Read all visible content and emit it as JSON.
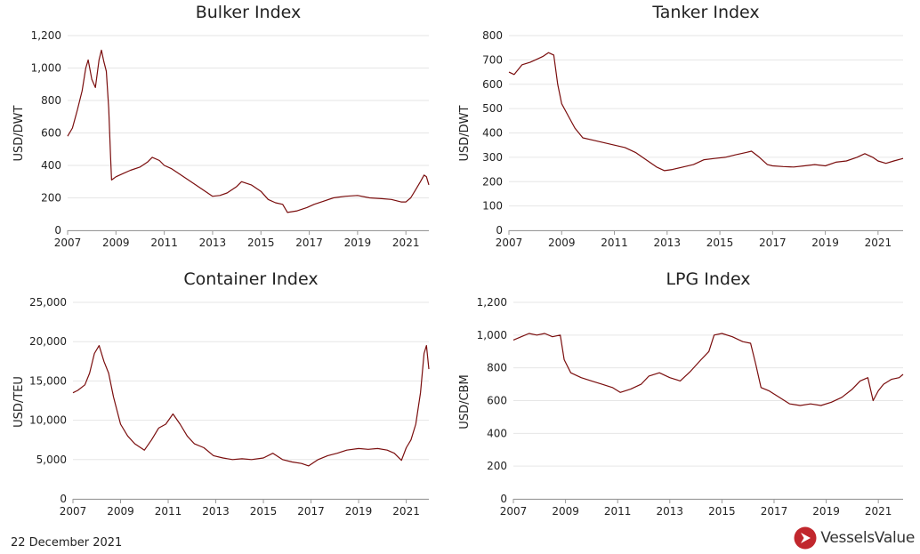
{
  "footer": {
    "date": "22 December 2021",
    "brand_name": "VesselsValue",
    "brand_color": "#c1272d",
    "brand_icon": "vesselsvalue-logo-icon"
  },
  "style": {
    "line_color": "#7a0d0d",
    "grid_color": "#e6e6e6"
  },
  "chart_data": [
    {
      "type": "line",
      "title": "Bulker Index",
      "ylabel": "USD/DWT",
      "xlabel": "",
      "ylim": [
        0,
        1200
      ],
      "yticks": [
        0,
        200,
        400,
        600,
        800,
        1000,
        1200
      ],
      "ytick_labels": [
        "0",
        "200",
        "400",
        "600",
        "800",
        "1,000",
        "1,200"
      ],
      "xlim": [
        2007,
        2021.95
      ],
      "xticks": [
        2007,
        2009,
        2011,
        2013,
        2015,
        2017,
        2019,
        2021
      ],
      "xtick_labels": [
        "2007",
        "2009",
        "2011",
        "2013",
        "2015",
        "2017",
        "2019",
        "2021"
      ],
      "grid": true,
      "series": [
        {
          "x": [
            2007,
            2007.2,
            2007.4,
            2007.6,
            2007.75,
            2007.85,
            2008.0,
            2008.15,
            2008.3,
            2008.4,
            2008.5,
            2008.6,
            2008.7,
            2008.78,
            2008.82,
            2009.0,
            2009.3,
            2009.6,
            2010.0,
            2010.3,
            2010.5,
            2010.8,
            2011.0,
            2011.3,
            2011.6,
            2011.9,
            2012.3,
            2012.7,
            2013.0,
            2013.3,
            2013.6,
            2014.0,
            2014.2,
            2014.6,
            2015.0,
            2015.3,
            2015.6,
            2015.9,
            2016.1,
            2016.5,
            2016.9,
            2017.2,
            2017.6,
            2018.0,
            2018.5,
            2019.0,
            2019.5,
            2020.0,
            2020.4,
            2020.8,
            2021.0,
            2021.2,
            2021.4,
            2021.6,
            2021.75,
            2021.85,
            2021.95
          ],
          "y": [
            580,
            630,
            740,
            860,
            1000,
            1050,
            930,
            880,
            1050,
            1110,
            1040,
            980,
            750,
            450,
            310,
            330,
            350,
            370,
            390,
            420,
            450,
            430,
            400,
            380,
            350,
            320,
            280,
            240,
            210,
            215,
            230,
            270,
            300,
            280,
            240,
            190,
            170,
            160,
            110,
            120,
            140,
            160,
            180,
            200,
            210,
            215,
            200,
            195,
            190,
            175,
            175,
            200,
            250,
            300,
            340,
            330,
            280
          ]
        }
      ]
    },
    {
      "type": "line",
      "title": "Tanker Index",
      "ylabel": "USD/DWT",
      "xlabel": "",
      "ylim": [
        0,
        800
      ],
      "yticks": [
        0,
        100,
        200,
        300,
        400,
        500,
        600,
        700,
        800
      ],
      "ytick_labels": [
        "0",
        "100",
        "200",
        "300",
        "400",
        "500",
        "600",
        "700",
        "800"
      ],
      "xlim": [
        2007,
        2021.95
      ],
      "xticks": [
        2007,
        2009,
        2011,
        2013,
        2015,
        2017,
        2019,
        2021
      ],
      "xtick_labels": [
        "2007",
        "2009",
        "2011",
        "2013",
        "2015",
        "2017",
        "2019",
        "2021"
      ],
      "grid": true,
      "series": [
        {
          "x": [
            2007,
            2007.2,
            2007.5,
            2007.8,
            2008.0,
            2008.3,
            2008.5,
            2008.7,
            2008.85,
            2009.0,
            2009.2,
            2009.5,
            2009.8,
            2010.2,
            2010.6,
            2011.0,
            2011.4,
            2011.8,
            2012.2,
            2012.6,
            2012.9,
            2013.2,
            2013.6,
            2014.0,
            2014.4,
            2014.8,
            2015.2,
            2015.6,
            2016.0,
            2016.2,
            2016.5,
            2016.8,
            2017.0,
            2017.4,
            2017.8,
            2018.2,
            2018.6,
            2019.0,
            2019.4,
            2019.8,
            2020.2,
            2020.5,
            2020.8,
            2021.0,
            2021.3,
            2021.6,
            2021.95
          ],
          "y": [
            650,
            640,
            680,
            690,
            700,
            715,
            730,
            720,
            600,
            520,
            480,
            420,
            380,
            370,
            360,
            350,
            340,
            320,
            290,
            260,
            245,
            250,
            260,
            270,
            290,
            295,
            300,
            310,
            320,
            325,
            300,
            270,
            265,
            262,
            260,
            265,
            270,
            265,
            280,
            285,
            300,
            315,
            300,
            285,
            275,
            285,
            295
          ]
        }
      ]
    },
    {
      "type": "line",
      "title": "Container Index",
      "ylabel": "USD/TEU",
      "xlabel": "",
      "ylim": [
        0,
        25000
      ],
      "yticks": [
        0,
        5000,
        10000,
        15000,
        20000,
        25000
      ],
      "ytick_labels": [
        "0",
        "5,000",
        "10,000",
        "15,000",
        "20,000",
        "25,000"
      ],
      "xlim": [
        2007,
        2021.95
      ],
      "xticks": [
        2007,
        2009,
        2011,
        2013,
        2015,
        2017,
        2019,
        2021
      ],
      "xtick_labels": [
        "2007",
        "2009",
        "2011",
        "2013",
        "2015",
        "2017",
        "2019",
        "2021"
      ],
      "grid": true,
      "series": [
        {
          "x": [
            2007,
            2007.2,
            2007.5,
            2007.7,
            2007.9,
            2008.1,
            2008.3,
            2008.5,
            2008.7,
            2009.0,
            2009.3,
            2009.6,
            2010.0,
            2010.3,
            2010.6,
            2010.9,
            2011.2,
            2011.5,
            2011.8,
            2012.1,
            2012.5,
            2012.9,
            2013.3,
            2013.7,
            2014.1,
            2014.5,
            2015.0,
            2015.4,
            2015.8,
            2016.2,
            2016.6,
            2016.9,
            2017.3,
            2017.7,
            2018.1,
            2018.5,
            2019.0,
            2019.4,
            2019.8,
            2020.2,
            2020.5,
            2020.8,
            2021.0,
            2021.2,
            2021.4,
            2021.6,
            2021.75,
            2021.85,
            2021.95
          ],
          "y": [
            13500,
            13800,
            14500,
            16000,
            18500,
            19500,
            17500,
            16000,
            13000,
            9500,
            8000,
            7000,
            6200,
            7500,
            9000,
            9500,
            10800,
            9500,
            8000,
            7000,
            6500,
            5500,
            5200,
            5000,
            5100,
            5000,
            5200,
            5800,
            5000,
            4700,
            4500,
            4200,
            5000,
            5500,
            5800,
            6200,
            6400,
            6300,
            6400,
            6200,
            5800,
            4900,
            6500,
            7500,
            9500,
            13500,
            18500,
            19500,
            16500
          ]
        }
      ]
    },
    {
      "type": "line",
      "title": "LPG Index",
      "ylabel": "USD/CBM",
      "xlabel": "",
      "ylim": [
        0,
        1200
      ],
      "yticks": [
        0,
        200,
        400,
        600,
        800,
        1000,
        1200
      ],
      "ytick_labels": [
        "0",
        "200",
        "400",
        "600",
        "800",
        "1,000",
        "1,200"
      ],
      "xlim": [
        2007,
        2021.95
      ],
      "xticks": [
        2007,
        2009,
        2011,
        2013,
        2015,
        2017,
        2019,
        2021
      ],
      "xtick_labels": [
        "2007",
        "2009",
        "2011",
        "2013",
        "2015",
        "2017",
        "2019",
        "2021"
      ],
      "grid": true,
      "series": [
        {
          "x": [
            2007,
            2007.3,
            2007.6,
            2007.9,
            2008.2,
            2008.5,
            2008.8,
            2008.95,
            2009.2,
            2009.6,
            2010.0,
            2010.4,
            2010.8,
            2011.1,
            2011.5,
            2011.9,
            2012.2,
            2012.6,
            2013.0,
            2013.4,
            2013.8,
            2014.2,
            2014.5,
            2014.7,
            2015.0,
            2015.4,
            2015.8,
            2016.1,
            2016.3,
            2016.5,
            2016.8,
            2017.2,
            2017.6,
            2018.0,
            2018.4,
            2018.8,
            2019.2,
            2019.6,
            2020.0,
            2020.3,
            2020.6,
            2020.8,
            2021.0,
            2021.2,
            2021.5,
            2021.8,
            2021.95
          ],
          "y": [
            970,
            990,
            1010,
            1000,
            1010,
            990,
            1000,
            850,
            770,
            740,
            720,
            700,
            680,
            650,
            670,
            700,
            750,
            770,
            740,
            720,
            780,
            850,
            900,
            1000,
            1010,
            990,
            960,
            950,
            820,
            680,
            660,
            620,
            580,
            570,
            580,
            570,
            590,
            620,
            670,
            720,
            740,
            600,
            660,
            700,
            730,
            740,
            760
          ]
        }
      ]
    }
  ]
}
